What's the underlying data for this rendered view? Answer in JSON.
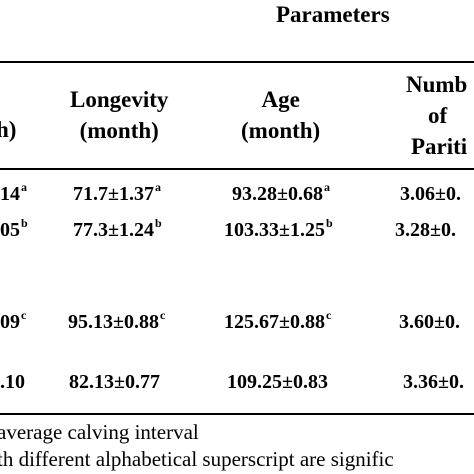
{
  "table": {
    "group_header": "Parameters",
    "col0_header_fragment": "h)",
    "headers": {
      "longevity": [
        "Longevity",
        "(month)"
      ],
      "age": [
        "Age",
        "(month)"
      ],
      "parity": [
        "Numb",
        "of",
        "Pariti"
      ]
    },
    "rows": [
      {
        "c0": "14",
        "c0_sup": "a",
        "longevity": "71.7±1.37",
        "longevity_sup": "a",
        "age": "93.28±0.68",
        "age_sup": "a",
        "parity": "3.06±0."
      },
      {
        "c0": "05",
        "c0_sup": "b",
        "longevity": "77.3±1.24",
        "longevity_sup": "b",
        "age": "103.33±1.25",
        "age_sup": "b",
        "parity": "3.28±0."
      },
      {
        "c0": "09",
        "c0_sup": "c",
        "longevity": "95.13±0.88",
        "longevity_sup": "c",
        "age": "125.67±0.88",
        "age_sup": "c",
        "parity": "3.60±0."
      },
      {
        "c0": ".10",
        "c0_sup": "",
        "longevity": "82.13±0.77",
        "longevity_sup": "",
        "age": "109.25±0.83",
        "age_sup": "",
        "parity": "3.36±0."
      }
    ]
  },
  "footnotes": [
    " average calving interval",
    "th different alphabetical superscript are signific"
  ]
}
